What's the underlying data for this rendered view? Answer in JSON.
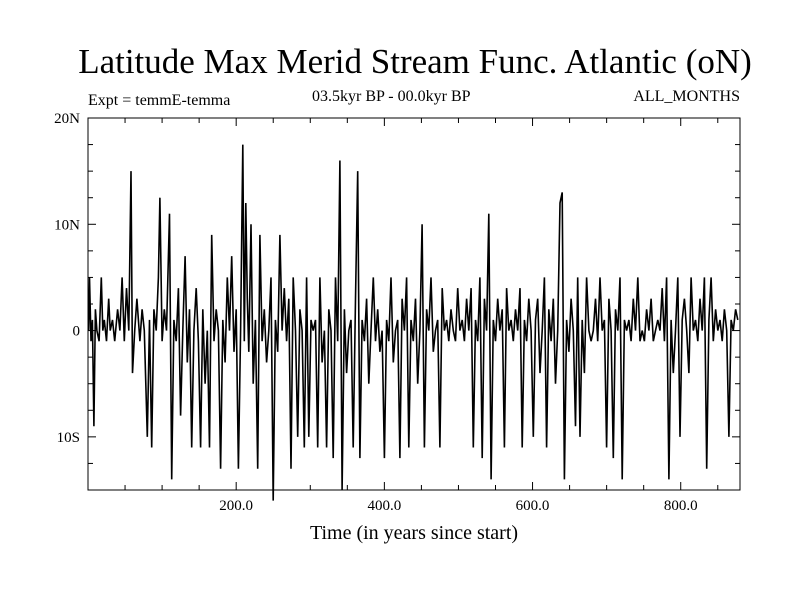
{
  "chart_data": {
    "type": "line",
    "title": "Latitude Max Merid Stream Func. Atlantic (oN)",
    "subtitle_left": "Expt = temmE-temma",
    "subtitle_center": "03.5kyr BP - 00.0kyr BP",
    "subtitle_right": "ALL_MONTHS",
    "xlabel": "Time (in years since start)",
    "ylabel": "",
    "xlim": [
      0,
      880
    ],
    "ylim": [
      -15,
      20
    ],
    "x_ticks": [
      {
        "value": 200,
        "label": "200.0"
      },
      {
        "value": 400,
        "label": "400.0"
      },
      {
        "value": 600,
        "label": "600.0"
      },
      {
        "value": 800,
        "label": "800.0"
      }
    ],
    "y_ticks": [
      {
        "value": 20,
        "label": "20N"
      },
      {
        "value": 10,
        "label": "10N"
      },
      {
        "value": 0,
        "label": "0"
      },
      {
        "value": -10,
        "label": "10S"
      }
    ],
    "series": [
      {
        "color": "#000000",
        "points": [
          [
            1,
            0
          ],
          [
            2,
            5
          ],
          [
            4,
            -1
          ],
          [
            6,
            1
          ],
          [
            8,
            -9
          ],
          [
            10,
            2
          ],
          [
            12,
            0
          ],
          [
            15,
            -1
          ],
          [
            18,
            5
          ],
          [
            20,
            0
          ],
          [
            22,
            1
          ],
          [
            25,
            -1
          ],
          [
            28,
            3
          ],
          [
            30,
            0
          ],
          [
            33,
            1
          ],
          [
            36,
            -1
          ],
          [
            40,
            2
          ],
          [
            43,
            0
          ],
          [
            46,
            5
          ],
          [
            49,
            -1
          ],
          [
            52,
            4
          ],
          [
            55,
            0
          ],
          [
            58,
            15
          ],
          [
            60,
            -4
          ],
          [
            63,
            0
          ],
          [
            66,
            3
          ],
          [
            70,
            -1
          ],
          [
            73,
            2
          ],
          [
            76,
            0
          ],
          [
            80,
            -10
          ],
          [
            83,
            1
          ],
          [
            86,
            -11
          ],
          [
            89,
            2
          ],
          [
            92,
            0
          ],
          [
            95,
            5
          ],
          [
            97,
            12.5
          ],
          [
            100,
            -1
          ],
          [
            103,
            2
          ],
          [
            106,
            0
          ],
          [
            110,
            11
          ],
          [
            113,
            -14
          ],
          [
            116,
            1
          ],
          [
            119,
            -1
          ],
          [
            122,
            4
          ],
          [
            125,
            -8
          ],
          [
            128,
            0
          ],
          [
            131,
            7
          ],
          [
            134,
            -3
          ],
          [
            137,
            2
          ],
          [
            140,
            -11
          ],
          [
            143,
            0
          ],
          [
            146,
            4
          ],
          [
            149,
            -1
          ],
          [
            152,
            -11
          ],
          [
            155,
            2
          ],
          [
            158,
            -5
          ],
          [
            161,
            0
          ],
          [
            164,
            -11
          ],
          [
            167,
            9
          ],
          [
            170,
            -1
          ],
          [
            173,
            2
          ],
          [
            176,
            0
          ],
          [
            179,
            -13
          ],
          [
            182,
            1
          ],
          [
            185,
            -3
          ],
          [
            188,
            5
          ],
          [
            191,
            0
          ],
          [
            194,
            7
          ],
          [
            197,
            -2
          ],
          [
            200,
            2
          ],
          [
            203,
            -13
          ],
          [
            206,
            0
          ],
          [
            209,
            17.5
          ],
          [
            211,
            -1
          ],
          [
            213,
            12
          ],
          [
            215,
            3
          ],
          [
            217,
            -2
          ],
          [
            220,
            10
          ],
          [
            223,
            -5
          ],
          [
            226,
            1
          ],
          [
            229,
            -13
          ],
          [
            232,
            9
          ],
          [
            235,
            -1
          ],
          [
            238,
            2
          ],
          [
            241,
            -3
          ],
          [
            244,
            0
          ],
          [
            247,
            5
          ],
          [
            250,
            -16
          ],
          [
            253,
            1
          ],
          [
            256,
            -2
          ],
          [
            259,
            9
          ],
          [
            262,
            0
          ],
          [
            265,
            4
          ],
          [
            268,
            -1
          ],
          [
            271,
            3
          ],
          [
            274,
            -13
          ],
          [
            277,
            5
          ],
          [
            280,
            0
          ],
          [
            283,
            -10
          ],
          [
            286,
            2
          ],
          [
            289,
            0
          ],
          [
            292,
            -11
          ],
          [
            295,
            5
          ],
          [
            298,
            -10
          ],
          [
            301,
            1
          ],
          [
            304,
            0
          ],
          [
            307,
            1
          ],
          [
            310,
            -11
          ],
          [
            313,
            5
          ],
          [
            316,
            -3
          ],
          [
            319,
            0
          ],
          [
            322,
            -11
          ],
          [
            325,
            2
          ],
          [
            328,
            0
          ],
          [
            331,
            -12
          ],
          [
            334,
            5
          ],
          [
            337,
            -1
          ],
          [
            340,
            16
          ],
          [
            343,
            -15
          ],
          [
            346,
            2
          ],
          [
            349,
            -4
          ],
          [
            352,
            0
          ],
          [
            355,
            1
          ],
          [
            358,
            -11
          ],
          [
            361,
            3
          ],
          [
            364,
            15
          ],
          [
            367,
            -12
          ],
          [
            370,
            1
          ],
          [
            373,
            -1
          ],
          [
            376,
            3
          ],
          [
            379,
            -5
          ],
          [
            382,
            0
          ],
          [
            385,
            5
          ],
          [
            388,
            -1
          ],
          [
            391,
            2
          ],
          [
            394,
            -2
          ],
          [
            397,
            0
          ],
          [
            400,
            -12
          ],
          [
            403,
            1
          ],
          [
            406,
            -1
          ],
          [
            409,
            5
          ],
          [
            412,
            -3
          ],
          [
            415,
            0
          ],
          [
            418,
            1
          ],
          [
            421,
            -12
          ],
          [
            424,
            3
          ],
          [
            427,
            0
          ],
          [
            430,
            5
          ],
          [
            433,
            -11
          ],
          [
            436,
            1
          ],
          [
            439,
            -1
          ],
          [
            442,
            3
          ],
          [
            445,
            -5
          ],
          [
            448,
            0
          ],
          [
            451,
            10
          ],
          [
            454,
            -11
          ],
          [
            457,
            2
          ],
          [
            460,
            0
          ],
          [
            463,
            5
          ],
          [
            466,
            -2
          ],
          [
            469,
            0
          ],
          [
            472,
            1
          ],
          [
            475,
            -11
          ],
          [
            478,
            4
          ],
          [
            481,
            0
          ],
          [
            484,
            1
          ],
          [
            487,
            -1
          ],
          [
            490,
            2
          ],
          [
            493,
            0
          ],
          [
            496,
            -1
          ],
          [
            499,
            4
          ],
          [
            502,
            0
          ],
          [
            505,
            1
          ],
          [
            508,
            -1
          ],
          [
            511,
            3
          ],
          [
            514,
            0
          ],
          [
            517,
            4
          ],
          [
            520,
            -11
          ],
          [
            523,
            1
          ],
          [
            526,
            -1
          ],
          [
            529,
            5
          ],
          [
            532,
            -12
          ],
          [
            535,
            3
          ],
          [
            538,
            0
          ],
          [
            541,
            11
          ],
          [
            544,
            -14
          ],
          [
            547,
            1
          ],
          [
            550,
            -1
          ],
          [
            553,
            3
          ],
          [
            556,
            0
          ],
          [
            559,
            2
          ],
          [
            562,
            -11
          ],
          [
            565,
            4
          ],
          [
            568,
            0
          ],
          [
            571,
            1
          ],
          [
            574,
            -1
          ],
          [
            577,
            2
          ],
          [
            580,
            0
          ],
          [
            583,
            4
          ],
          [
            586,
            -11
          ],
          [
            589,
            1
          ],
          [
            592,
            -1
          ],
          [
            595,
            3
          ],
          [
            598,
            0
          ],
          [
            601,
            -10
          ],
          [
            604,
            1
          ],
          [
            607,
            3
          ],
          [
            610,
            -4
          ],
          [
            613,
            0
          ],
          [
            616,
            5
          ],
          [
            619,
            -11
          ],
          [
            622,
            2
          ],
          [
            625,
            -1
          ],
          [
            628,
            3
          ],
          [
            631,
            -5
          ],
          [
            634,
            0
          ],
          [
            637,
            12
          ],
          [
            640,
            13
          ],
          [
            643,
            -14
          ],
          [
            646,
            1
          ],
          [
            649,
            -2
          ],
          [
            652,
            3
          ],
          [
            655,
            0
          ],
          [
            658,
            -9
          ],
          [
            661,
            5
          ],
          [
            664,
            -10
          ],
          [
            667,
            1
          ],
          [
            670,
            -4
          ],
          [
            673,
            5
          ],
          [
            676,
            0
          ],
          [
            679,
            -1
          ],
          [
            682,
            0
          ],
          [
            685,
            3
          ],
          [
            688,
            -1
          ],
          [
            691,
            5
          ],
          [
            694,
            0
          ],
          [
            697,
            1
          ],
          [
            700,
            -11
          ],
          [
            703,
            3
          ],
          [
            706,
            0
          ],
          [
            709,
            -12
          ],
          [
            712,
            2
          ],
          [
            715,
            0
          ],
          [
            718,
            5
          ],
          [
            721,
            -14
          ],
          [
            724,
            1
          ],
          [
            727,
            0
          ],
          [
            730,
            1
          ],
          [
            733,
            -1
          ],
          [
            736,
            3
          ],
          [
            739,
            0
          ],
          [
            742,
            5
          ],
          [
            745,
            -1
          ],
          [
            748,
            0
          ],
          [
            751,
            -1
          ],
          [
            754,
            2
          ],
          [
            757,
            0
          ],
          [
            760,
            3
          ],
          [
            763,
            -1
          ],
          [
            766,
            0
          ],
          [
            769,
            1
          ],
          [
            772,
            0
          ],
          [
            775,
            4
          ],
          [
            778,
            -1
          ],
          [
            781,
            5
          ],
          [
            784,
            -14
          ],
          [
            787,
            1
          ],
          [
            790,
            -4
          ],
          [
            793,
            0
          ],
          [
            796,
            5
          ],
          [
            799,
            -10
          ],
          [
            802,
            1
          ],
          [
            805,
            3
          ],
          [
            808,
            0
          ],
          [
            811,
            -4
          ],
          [
            814,
            5
          ],
          [
            817,
            0
          ],
          [
            820,
            1
          ],
          [
            823,
            -1
          ],
          [
            826,
            3
          ],
          [
            829,
            0
          ],
          [
            832,
            5
          ],
          [
            835,
            -13
          ],
          [
            838,
            1
          ],
          [
            841,
            5
          ],
          [
            844,
            -1
          ],
          [
            847,
            2
          ],
          [
            850,
            0
          ],
          [
            853,
            1
          ],
          [
            856,
            -1
          ],
          [
            859,
            2
          ],
          [
            862,
            0
          ],
          [
            865,
            -10
          ],
          [
            868,
            1
          ],
          [
            871,
            0
          ],
          [
            874,
            2
          ],
          [
            877,
            1
          ]
        ]
      }
    ]
  }
}
